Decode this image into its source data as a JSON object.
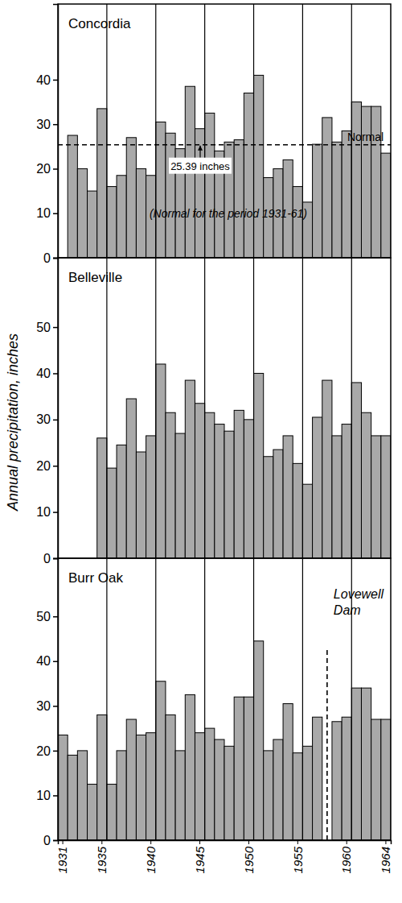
{
  "chart_data": [
    {
      "type": "bar",
      "title": "Concordia",
      "categories": [
        "1931",
        null,
        null,
        null,
        "1935",
        null,
        null,
        null,
        null,
        "1940",
        null,
        null,
        null,
        null,
        "1945",
        null,
        null,
        null,
        null,
        "1950",
        null,
        null,
        null,
        null,
        "1955",
        null,
        null,
        null,
        null,
        "1960",
        null,
        null,
        null,
        "1964"
      ],
      "values": [
        null,
        27.5,
        20,
        15,
        33.5,
        16,
        18.5,
        27,
        20,
        18.5,
        30.5,
        28,
        24.5,
        38.5,
        29,
        32.5,
        24,
        26,
        26.5,
        37,
        41,
        18,
        20,
        22,
        16,
        12.5,
        25.5,
        31.5,
        26,
        28.5,
        35,
        34,
        34,
        23.5
      ],
      "color": "#a9a9a9",
      "ylim": [
        0,
        57
      ],
      "yticks": [
        0,
        10,
        20,
        30,
        40
      ],
      "grid": true,
      "tick_labels": "y",
      "normal": {
        "value": 25.39,
        "label": "Normal",
        "value_label": "25.39 inches",
        "note": "(Normal for the period 1931-61)"
      }
    },
    {
      "type": "bar",
      "title": "Belleville",
      "y_label": "Annual precipitation, inches",
      "categories": [
        "1931",
        null,
        null,
        null,
        "1935",
        null,
        null,
        null,
        null,
        "1940",
        null,
        null,
        null,
        null,
        "1945",
        null,
        null,
        null,
        null,
        "1950",
        null,
        null,
        null,
        null,
        "1955",
        null,
        null,
        null,
        null,
        "1960",
        null,
        null,
        null,
        "1964"
      ],
      "values": [
        null,
        null,
        null,
        null,
        26,
        19.5,
        24.5,
        34.5,
        23,
        26.5,
        42,
        31.5,
        27,
        38.5,
        33.5,
        31.5,
        29,
        27.5,
        32,
        30,
        40,
        22,
        23.5,
        26.5,
        20.5,
        16,
        30.5,
        38.5,
        26.5,
        29,
        38,
        31.5,
        26.5,
        26.5
      ],
      "color": "#a9a9a9",
      "ylim": [
        0,
        65
      ],
      "yticks": [
        0,
        10,
        20,
        30,
        40,
        50
      ],
      "grid": true,
      "tick_labels": "y"
    },
    {
      "type": "bar",
      "title": "Burr Oak",
      "categories": [
        "1931",
        null,
        null,
        null,
        "1935",
        null,
        null,
        null,
        null,
        "1940",
        null,
        null,
        null,
        null,
        "1945",
        null,
        null,
        null,
        null,
        "1950",
        null,
        null,
        null,
        null,
        "1955",
        null,
        null,
        null,
        null,
        "1960",
        null,
        null,
        null,
        "1964"
      ],
      "values": [
        23.5,
        19,
        20,
        12.5,
        28,
        12.5,
        20,
        27,
        23.5,
        24,
        35.5,
        28,
        20,
        32.5,
        24,
        25,
        22.5,
        21,
        32,
        32,
        44.5,
        20,
        22.5,
        30.5,
        19.5,
        21,
        27.5,
        null,
        26.5,
        27.5,
        34,
        34,
        27,
        27
      ],
      "color": "#a9a9a9",
      "ylim": [
        0,
        63
      ],
      "yticks": [
        0,
        10,
        20,
        30,
        40,
        50
      ],
      "grid": true,
      "tick_labels": true,
      "dam": {
        "x": 1958,
        "lines": [
          "Lovewell",
          "Dam"
        ]
      }
    }
  ]
}
